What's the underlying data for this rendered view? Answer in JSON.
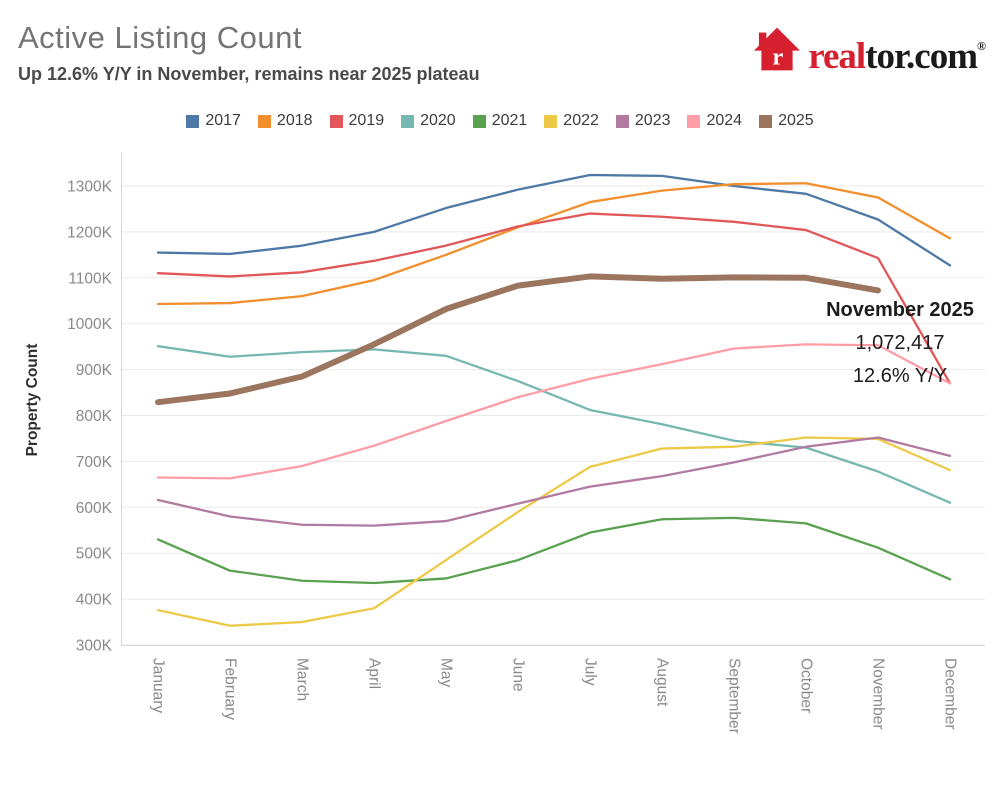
{
  "header": {
    "title": "Active Listing Count",
    "subtitle": "Up 12.6% Y/Y in November, remains near 2025 plateau"
  },
  "logo": {
    "brand_red": "real",
    "brand_dark": "tor.com",
    "registered": "®",
    "house_color": "#d6202f"
  },
  "chart_data": {
    "type": "line",
    "title": "Active Listing Count",
    "xlabel": "",
    "ylabel": "Property Count",
    "values_unit": "thousands (K)",
    "grid": true,
    "legend_position": "top",
    "categories": [
      "January",
      "February",
      "March",
      "April",
      "May",
      "June",
      "July",
      "August",
      "September",
      "October",
      "November",
      "December"
    ],
    "yticks": [
      300,
      400,
      500,
      600,
      700,
      800,
      900,
      1000,
      1100,
      1200,
      1300
    ],
    "ytick_suffix": "K",
    "ylim": [
      280,
      1360
    ],
    "series": [
      {
        "name": "2017",
        "color": "#4e79a7",
        "values": [
          1155,
          1152,
          1170,
          1200,
          1252,
          1292,
          1324,
          1322,
          1300,
          1283,
          1227,
          1127
        ]
      },
      {
        "name": "2018",
        "color": "#f28e2b",
        "values": [
          1043,
          1045,
          1060,
          1095,
          1150,
          1210,
          1265,
          1290,
          1304,
          1306,
          1275,
          1186
        ]
      },
      {
        "name": "2019",
        "color": "#e15759",
        "values": [
          1110,
          1103,
          1112,
          1137,
          1170,
          1212,
          1240,
          1233,
          1222,
          1204,
          1143,
          870
        ]
      },
      {
        "name": "2020",
        "color": "#76b7b2",
        "values": [
          951,
          928,
          938,
          944,
          930,
          875,
          812,
          781,
          745,
          730,
          678,
          610
        ]
      },
      {
        "name": "2021",
        "color": "#59a14f",
        "values": [
          530,
          462,
          440,
          435,
          445,
          485,
          545,
          574,
          577,
          565,
          512,
          443
        ]
      },
      {
        "name": "2022",
        "color": "#edc948",
        "values": [
          376,
          342,
          350,
          380,
          485,
          590,
          688,
          728,
          732,
          752,
          749,
          681
        ]
      },
      {
        "name": "2023",
        "color": "#b07aa1",
        "values": [
          616,
          580,
          562,
          560,
          570,
          608,
          645,
          668,
          698,
          732,
          752,
          712
        ]
      },
      {
        "name": "2024",
        "color": "#ff9da7",
        "values": [
          665,
          663,
          690,
          734,
          788,
          840,
          880,
          912,
          946,
          955,
          953,
          870
        ]
      },
      {
        "name": "2025",
        "color": "#9c755f",
        "emphasis": true,
        "values": [
          829,
          848,
          885,
          955,
          1032,
          1083,
          1103,
          1098,
          1101,
          1100,
          1072.417
        ]
      }
    ],
    "annotation": {
      "label": "November 2025",
      "value": "1,072,417",
      "yoy": "12.6% Y/Y"
    }
  }
}
